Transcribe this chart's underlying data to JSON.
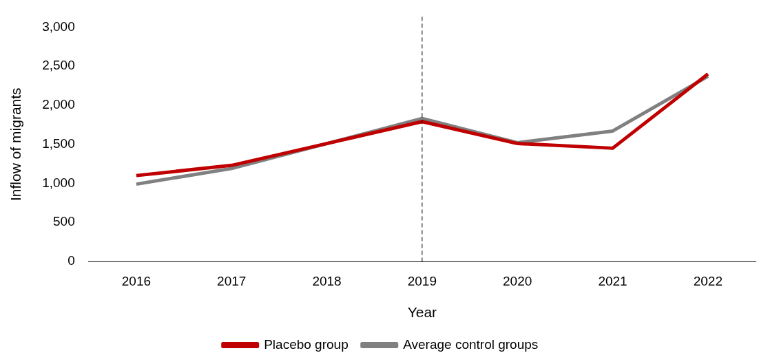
{
  "chart_data": {
    "type": "line",
    "xlabel": "Year",
    "ylabel": "Inflow of migrants",
    "categories": [
      "2016",
      "2017",
      "2018",
      "2019",
      "2020",
      "2021",
      "2022"
    ],
    "series": [
      {
        "name": "Placebo group",
        "color": "#c00000",
        "values": [
          1100,
          1230,
          1510,
          1790,
          1510,
          1450,
          2400
        ]
      },
      {
        "name": "Average control groups",
        "color": "#808080",
        "values": [
          990,
          1190,
          1510,
          1830,
          1520,
          1670,
          2370
        ]
      }
    ],
    "ylim": [
      0,
      3000
    ],
    "yticks": [
      0,
      500,
      {
        "value": 1000,
        "label": "1,000"
      },
      {
        "value": 1500,
        "label": "1,500"
      },
      {
        "value": 2000,
        "label": "2,000"
      },
      {
        "value": 2500,
        "label": "2,500"
      },
      {
        "value": 3000,
        "label": "3,000"
      }
    ],
    "grid": false,
    "legend": "bottom",
    "marker": "none",
    "line_style": "solid",
    "ref_lines": [
      {
        "axis": "x",
        "value": "2019",
        "color": "#000000",
        "line_style": "dashed"
      }
    ]
  }
}
